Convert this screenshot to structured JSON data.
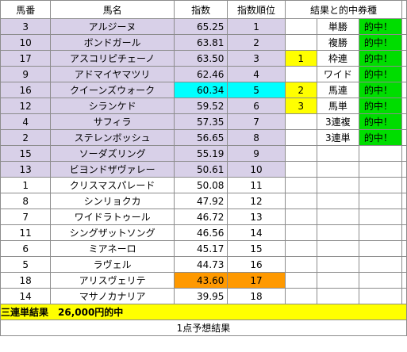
{
  "headers": {
    "num": "馬番",
    "name": "馬名",
    "score": "指数",
    "rank": "指数順位",
    "result": "結果と的中券種"
  },
  "rows": [
    {
      "num": "3",
      "name": "アルジーヌ",
      "score": "65.25",
      "rank": "1",
      "res": "",
      "type": "単勝",
      "hit": "的中！"
    },
    {
      "num": "10",
      "name": "ボンドガール",
      "score": "63.81",
      "rank": "2",
      "res": "",
      "type": "複勝",
      "hit": "的中！"
    },
    {
      "num": "17",
      "name": "アスコリピチェーノ",
      "score": "63.50",
      "rank": "3",
      "res": "1",
      "type": "枠連",
      "hit": "的中！"
    },
    {
      "num": "9",
      "name": "アドマイヤマツリ",
      "score": "62.46",
      "rank": "4",
      "res": "",
      "type": "ワイド",
      "hit": "的中！"
    },
    {
      "num": "16",
      "name": "クイーンズウォーク",
      "score": "60.34",
      "rank": "5",
      "res": "2",
      "type": "馬連",
      "hit": "的中！"
    },
    {
      "num": "12",
      "name": "シランケド",
      "score": "59.52",
      "rank": "6",
      "res": "3",
      "type": "馬単",
      "hit": "的中！"
    },
    {
      "num": "4",
      "name": "サフィラ",
      "score": "57.35",
      "rank": "7",
      "res": "",
      "type": "3連複",
      "hit": "的中！"
    },
    {
      "num": "2",
      "name": "ステレンボッシュ",
      "score": "56.65",
      "rank": "8",
      "res": "",
      "type": "3連単",
      "hit": "的中！"
    },
    {
      "num": "15",
      "name": "ソーダズリング",
      "score": "55.19",
      "rank": "9",
      "res": "",
      "type": "",
      "hit": ""
    },
    {
      "num": "13",
      "name": "ビヨンドザヴァレー",
      "score": "50.61",
      "rank": "10",
      "res": "",
      "type": "",
      "hit": ""
    },
    {
      "num": "1",
      "name": "クリスマスパレード",
      "score": "50.08",
      "rank": "11",
      "res": "",
      "type": "",
      "hit": ""
    },
    {
      "num": "8",
      "name": "シンリョクカ",
      "score": "47.92",
      "rank": "12",
      "res": "",
      "type": "",
      "hit": ""
    },
    {
      "num": "7",
      "name": "ワイドラトゥール",
      "score": "46.72",
      "rank": "13",
      "res": "",
      "type": "",
      "hit": ""
    },
    {
      "num": "11",
      "name": "シングザットソング",
      "score": "46.56",
      "rank": "14",
      "res": "",
      "type": "",
      "hit": ""
    },
    {
      "num": "6",
      "name": "ミアネーロ",
      "score": "45.17",
      "rank": "15",
      "res": "",
      "type": "",
      "hit": ""
    },
    {
      "num": "5",
      "name": "ラヴェル",
      "score": "44.73",
      "rank": "16",
      "res": "",
      "type": "",
      "hit": ""
    },
    {
      "num": "18",
      "name": "アリスヴェリテ",
      "score": "43.60",
      "rank": "17",
      "res": "",
      "type": "",
      "hit": ""
    },
    {
      "num": "14",
      "name": "マサノカナリア",
      "score": "39.95",
      "rank": "18",
      "res": "",
      "type": "",
      "hit": ""
    }
  ],
  "total": "三連単結果　26,000円的中",
  "footer": "1点予想結果",
  "colors": {
    "top_rows": "#d8d0e8",
    "highlight_cyan": "#00ffff",
    "highlight_orange": "#ff9900",
    "finish_yellow": "#ffff00",
    "hit_green": "#00dd00"
  }
}
